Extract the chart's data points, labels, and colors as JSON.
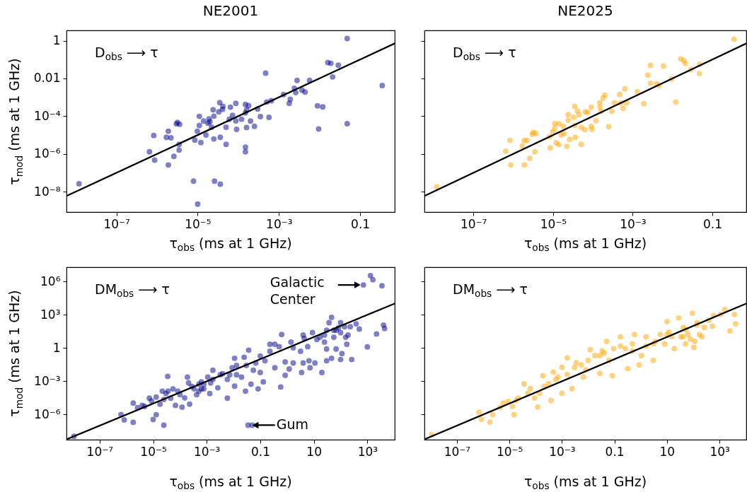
{
  "chart_data": [
    {
      "type": "scatter",
      "title": "NE2001",
      "xlabel": "τ$_{obs}$ (ms at 1 GHz)",
      "ylabel": "τ$_{mod}$ (ms at 1 GHz)",
      "log": "xy",
      "xlim": [
        5.9e-09,
        0.71
      ],
      "ylim": [
        8.3e-10,
        3.5
      ],
      "xticks": [
        {
          "value": 1e-07,
          "label": "10⁻⁷"
        },
        {
          "value": 1e-05,
          "label": "10⁻⁵"
        },
        {
          "value": 0.001,
          "label": "10⁻³"
        },
        {
          "value": 0.1,
          "label": "0.1"
        }
      ],
      "yticks": [
        {
          "value": 1e-08,
          "label": "10⁻⁸"
        },
        {
          "value": 1e-06,
          "label": "10⁻⁶"
        },
        {
          "value": 0.0001,
          "label": "10⁻⁴"
        },
        {
          "value": 0.01,
          "label": "0.01"
        },
        {
          "value": 1,
          "label": "1"
        }
      ],
      "annotations": [
        "D$_{obs}$ ⟶ τ"
      ],
      "series": [
        {
          "color": "#00008b",
          "marker": "circle",
          "x": [
            1.2e-08,
            0.048,
            0.016,
            0.019,
            0.029,
            0.00047,
            0.021,
            0.35,
            0.0028,
            0.0057,
            0.0024,
            0.0037,
            0.0044,
            0.0026,
            0.0013,
            0.0019,
            0.0018,
            0.00065,
            0.0005,
            0.0089,
            0.012,
            0.0095,
            0.048,
            0.00015,
            0.00018,
            0.00016,
            0.0003,
            0.00015,
            8.7e-05,
            6.4e-05,
            3.5e-05,
            4.2e-05,
            4.1e-05,
            2.4e-05,
            3.3e-05,
            2.5e-05,
            1.1e-05,
            7.2e-05,
            6e-05,
            8.7e-05,
            0.00012,
            0.0002,
            0.00035,
            0.00057,
            1.9e-05,
            2e-05,
            1.4e-05,
            1.8e-05,
            1.1e-05,
            2.2e-05,
            5e-05,
            9.1e-05,
            0.00016,
            0.00025,
            3.2e-06,
            3.6e-06,
            3e-06,
            1.9e-06,
            1.7e-06,
            2.2e-06,
            8.3e-07,
            9.8e-06,
            1.6e-05,
            8.5e-06,
            1.2e-05,
            2.5e-05,
            3.6e-05,
            5e-05,
            3.5e-06,
            3.5e-06,
            6.5e-07,
            8.7e-07,
            2.6e-06,
            1.9e-06,
            0.00015,
            0.00015,
            7.9e-06,
            2.6e-05,
            3.6e-05,
            1e-05
          ],
          "values": [
            2.6e-08,
            1.3,
            0.069,
            0.063,
            0.05,
            0.019,
            0.012,
            0.0042,
            0.0078,
            0.0078,
            0.003,
            0.0024,
            0.0019,
            0.0018,
            0.0014,
            0.00078,
            0.00048,
            0.00066,
            0.00056,
            0.00035,
            0.00031,
            2.1e-05,
            4e-05,
            0.00042,
            0.00036,
            0.00022,
            0.00024,
            0.00015,
            0.00048,
            0.0003,
            0.00052,
            0.00033,
            0.00023,
            0.00022,
            0.00017,
            0.0001,
            9.8e-05,
            0.00011,
            6.9e-05,
            5.6e-05,
            6.9e-05,
            5.5e-05,
            9.5e-05,
            8.7e-05,
            7.2e-05,
            5.1e-05,
            5.5e-05,
            4.2e-05,
            3.2e-05,
            2.6e-05,
            2.6e-05,
            2e-05,
            2.5e-05,
            2.9e-05,
            4.7e-05,
            3.7e-05,
            3.9e-05,
            1.6e-05,
            7.6e-06,
            7.1e-06,
            9.5e-06,
            1.6e-05,
            1e-05,
            5.4e-06,
            4e-06,
            6.2e-06,
            7.6e-06,
            3.2e-06,
            3.2e-06,
            1.6e-06,
            1.3e-06,
            4.7e-07,
            7.4e-07,
            2.6e-07,
            2.3e-06,
            1.3e-06,
            3.6e-08,
            3.6e-08,
            2.5e-08,
            2.2e-09
          ]
        },
        {
          "type": "line",
          "color": "#000000",
          "x": [
            6e-09,
            0.7
          ],
          "values": [
            6e-09,
            0.7
          ]
        }
      ]
    },
    {
      "type": "scatter",
      "title": "NE2025",
      "xlabel": "τ$_{obs}$ (ms at 1 GHz)",
      "log": "xy",
      "tick_labels": "x",
      "xlim": [
        5.9e-09,
        0.71
      ],
      "ylim": [
        8.3e-10,
        3.5
      ],
      "xticks": [
        {
          "value": 1e-07,
          "label": "10⁻⁷"
        },
        {
          "value": 1e-05,
          "label": "10⁻⁵"
        },
        {
          "value": 0.001,
          "label": "10⁻³"
        },
        {
          "value": 0.1,
          "label": "0.1"
        }
      ],
      "yticks": [
        {
          "value": 1e-08,
          "label": null
        },
        {
          "value": 1e-06,
          "label": null
        },
        {
          "value": 0.0001,
          "label": null
        },
        {
          "value": 0.01,
          "label": null
        },
        {
          "value": 1,
          "label": null
        }
      ],
      "annotations": [
        "D$_{obs}$ ⟶ τ"
      ],
      "series": [
        {
          "color": "#ffa500",
          "marker": "circle",
          "x": [
            1.2e-08,
            0.35,
            0.016,
            0.019,
            0.021,
            0.048,
            0.029,
            0.047,
            0.0028,
            0.0059,
            0.0024,
            0.0028,
            0.004,
            0.0046,
            0.0093,
            0.012,
            0.0013,
            0.00063,
            0.00047,
            0.00035,
            0.0005,
            0.00069,
            0.00057,
            0.0019,
            0.0002,
            0.00018,
            0.00015,
            0.00015,
            0.00016,
            0.0003,
            0.00025,
            0.00012,
            9.1e-05,
            6.5e-05,
            7.4e-05,
            4.5e-05,
            3.5e-05,
            4.1e-05,
            2.4e-05,
            3.3e-05,
            2.4e-05,
            1.1e-05,
            1.4e-05,
            1.1e-05,
            1.8e-05,
            1.9e-05,
            1.6e-05,
            9.8e-06,
            8.1e-06,
            3.5e-05,
            5.1e-05,
            6.3e-05,
            9.1e-05,
            9.5e-05,
            3.6e-05,
            2.6e-05,
            5.1e-05,
            1.2e-05,
            1.4e-05,
            8.5e-06,
            2.2e-05,
            3.2e-06,
            3.7e-06,
            3e-06,
            1.9e-06,
            2.2e-06,
            1.7e-06,
            8.3e-07,
            6.5e-07,
            3.5e-06,
            2.6e-06,
            8.7e-07,
            1.9e-06
          ],
          "values": [
            1.8e-08,
            1.2,
            0.11,
            0.09,
            0.062,
            0.056,
            0.03,
            0.018,
            0.049,
            0.045,
            0.015,
            0.0055,
            0.0052,
            0.0042,
            0.0093,
            0.00056,
            0.002,
            0.0028,
            0.0014,
            0.00051,
            0.00051,
            0.00051,
            0.00026,
            0.00046,
            0.0013,
            0.00091,
            0.00051,
            0.0003,
            0.00018,
            0.00018,
            2.8e-05,
            5.8e-05,
            0.0003,
            0.00017,
            0.00016,
            0.00012,
            0.00033,
            0.00019,
            0.00012,
            8.8e-05,
            6e-05,
            4e-05,
            4e-05,
            2.2e-05,
            2.9e-05,
            1.2e-05,
            1e-05,
            1.5e-05,
            8.3e-06,
            3.2e-05,
            2.5e-05,
            1.9e-05,
            2.9e-05,
            2e-05,
            7.6e-06,
            5.9e-06,
            3.2e-06,
            3.9e-06,
            3.1e-06,
            2.1e-06,
            2.5e-06,
            1.4e-05,
            1.2e-05,
            1.1e-05,
            5.2e-06,
            5.2e-06,
            2.7e-06,
            5.2e-06,
            1.4e-06,
            1.3e-06,
            5.8e-07,
            2.6e-07,
            2.6e-07
          ]
        },
        {
          "type": "line",
          "color": "#000000",
          "x": [
            6e-09,
            0.7
          ],
          "values": [
            6e-09,
            0.7
          ]
        }
      ]
    },
    {
      "type": "scatter",
      "xlabel": "τ$_{obs}$ (ms at 1 GHz)",
      "ylabel": "τ$_{mod}$ (ms at 1 GHz)",
      "log": "xy",
      "xlim": [
        5.8e-09,
        10500
      ],
      "ylim": [
        5.4e-09,
        20000000.0
      ],
      "xticks": [
        {
          "value": 1e-07,
          "label": "10⁻⁷"
        },
        {
          "value": 1e-05,
          "label": "10⁻⁵"
        },
        {
          "value": 0.001,
          "label": "10⁻³"
        },
        {
          "value": 0.1,
          "label": "0.1"
        },
        {
          "value": 10,
          "label": "10"
        },
        {
          "value": 1000,
          "label": "10³"
        }
      ],
      "yticks": [
        {
          "value": 1e-06,
          "label": "10⁻⁶"
        },
        {
          "value": 0.001,
          "label": "10⁻³"
        },
        {
          "value": 1,
          "label": "1"
        },
        {
          "value": 1000,
          "label": "10³"
        },
        {
          "value": 1000000,
          "label": "10⁶"
        }
      ],
      "annotations": [
        "DM$_{obs}$ ⟶ τ",
        {
          "text": "Galactic\nCenter",
          "x": 710,
          "y": 500000.0
        },
        {
          "text": "Gum",
          "x": 0.035,
          "y": 1.1e-07
        }
      ],
      "series": [
        {
          "color": "#00008b",
          "marker": "circle",
          "x": [
            1.1e-08,
            710,
            1300,
            1600,
            3500,
            4000,
            4400,
            2200,
            1000,
            0.035,
            0.05,
            2.5e-05,
            3.5e-05,
            6.3e-07,
            8.3e-07,
            1.8e-06,
            1e-05,
            1.3e-05,
            1.8e-06,
            2.6e-06,
            4.8e-06,
            8.7e-06,
            1.8e-05,
            2.5e-05,
            4.5e-05,
            6.8e-05,
            0.00012,
            0.00023,
            0.00015,
            0.0001,
            3.6e-05,
            2.2e-05,
            0.00019,
            0.00021,
            0.00034,
            0.00051,
            0.00078,
            0.0013,
            0.00042,
            0.0059,
            0.0026,
            0.0014,
            0.00063,
            0.0017,
            0.0032,
            0.0072,
            0.011,
            0.011,
            0.0089,
            0.02,
            0.025,
            0.037,
            0.028,
            0.045,
            0.083,
            0.055,
            0.1,
            0.13,
            0.068,
            0.15,
            0.23,
            0.35,
            0.58,
            0.63,
            0.35,
            0.85,
            1.2,
            0.85,
            1.7,
            3.2,
            1.7,
            4,
            3.5,
            4.4,
            5.9,
            6.6,
            7.2,
            11,
            20,
            13,
            25,
            46,
            37,
            30,
            25,
            30,
            30,
            46,
            56,
            68,
            83,
            100,
            100,
            112,
            155,
            170,
            230,
            190,
            260,
            380,
            500,
            140,
            68,
            0.00051,
            0.0011,
            0.0039,
            0.013,
            0.03,
            0.1,
            0.23,
            0.51,
            1.4,
            4,
            8.9,
            17,
            56,
            100,
            7.2e-06,
            3.9e-06,
            1.3e-05,
            3e-05,
            5.5e-05,
            8.3e-05,
            0.00028,
            0.00063,
            0.00078,
            0.0017,
            0.0059,
            0.013
          ],
          "values": [
            1.1e-08,
            500000.0,
            3500000.0,
            1500000.0,
            420000.0,
            120,
            58,
            19,
            1.3,
            1.1e-07,
            1.1e-07,
            1.1e-07,
            0.0028,
            1e-06,
            3.3e-07,
            2e-07,
            3.6e-07,
            9.8e-07,
            1.1e-05,
            4.2e-06,
            5.4e-06,
            1.7e-05,
            8.7e-06,
            2.3e-05,
            3e-05,
            6.8e-06,
            4.7e-06,
            8.7e-06,
            3.2e-05,
            6.2e-05,
            0.00013,
            0.00013,
            0.0024,
            0.00071,
            0.00021,
            0.00013,
            0.00021,
            7.8e-05,
            6.2e-05,
            3e-05,
            0.00026,
            0.00071,
            0.00089,
            0.01,
            0.0039,
            0.0039,
            0.12,
            0.00037,
            0.017,
            0.0024,
            0.15,
            0.65,
            0.00013,
            0.00055,
            0.00021,
            0.01,
            0.0063,
            0.00089,
            0.045,
            0.072,
            0.51,
            2.2,
            0.00031,
            17,
            0.017,
            0.056,
            0.013,
            0.0035,
            0.045,
            0.51,
            1.07,
            0.045,
            0.0063,
            7.4,
            1.35,
            0.072,
            0.017,
            0.045,
            0.0063,
            5.9,
            15,
            600,
            195,
            41,
            3.5,
            0.83,
            0.072,
            0.12,
            9.5,
            0.83,
            68,
            195,
            0.093,
            0.32,
            9.5,
            2.2,
            85,
            15,
            0.093,
            155,
            52,
            85,
            41,
            0.00055,
            0.0024,
            0.0049,
            0.027,
            0.027,
            0.19,
            2.2,
            1.35,
            3.5,
            15,
            25,
            9.5,
            41,
            25,
            3e-05,
            6.8e-06,
            3.8e-05,
            7.8e-05,
            0.00021,
            0.00013,
            0.00034,
            0.00021,
            0.00055,
            0.0015,
            0.0015,
            0.0039
          ]
        },
        {
          "type": "line",
          "color": "#000000",
          "x": [
            6e-09,
            10000
          ],
          "values": [
            6e-09,
            10000
          ]
        }
      ]
    },
    {
      "type": "scatter",
      "xlabel": "τ$_{obs}$ (ms at 1 GHz)",
      "log": "xy",
      "tick_labels": "x",
      "xlim": [
        5.8e-09,
        10500
      ],
      "ylim": [
        5.4e-09,
        20000000.0
      ],
      "xticks": [
        {
          "value": 1e-07,
          "label": "10⁻⁷"
        },
        {
          "value": 1e-05,
          "label": "10⁻⁵"
        },
        {
          "value": 0.001,
          "label": "10⁻³"
        },
        {
          "value": 0.1,
          "label": "0.1"
        },
        {
          "value": 10,
          "label": "10"
        },
        {
          "value": 1000,
          "label": "10³"
        }
      ],
      "yticks": [
        {
          "value": 1e-06,
          "label": null
        },
        {
          "value": 0.001,
          "label": null
        },
        {
          "value": 1,
          "label": null
        },
        {
          "value": 1000,
          "label": null
        },
        {
          "value": 1000000,
          "label": null
        }
      ],
      "annotations": [
        "DM$_{obs}$ ⟶ τ"
      ],
      "series": [
        {
          "color": "#ffa500",
          "marker": "circle",
          "x": [
            1.1e-08,
            6.9e-07,
            8.5e-07,
            1.8e-06,
            2.3e-06,
            4.4e-06,
            5.9e-06,
            8.9e-06,
            1.5e-05,
            1.3e-05,
            2.2e-05,
            3.6e-05,
            6.2e-05,
            9.1e-05,
            0.00012,
            0.00014,
            0.00021,
            0.00019,
            0.00038,
            0.00058,
            0.001,
            0.0024,
            0.0016,
            0.0035,
            0.0066,
            0.0081,
            0.012,
            0.018,
            0.028,
            0.034,
            0.05,
            0.083,
            0.093,
            0.062,
            0.17,
            0.32,
            0.26,
            0.48,
            0.58,
            0.87,
            1.07,
            1.6,
            3,
            3.6,
            5.5,
            10,
            8.1,
            12,
            19,
            28,
            34,
            51,
            51,
            78,
            93,
            105,
            140,
            174,
            214,
            263,
            390,
            540,
            1100,
            1600,
            2500,
            3700,
            4100,
            0.00047,
            0.001,
            0.003,
            0.01,
            0.028,
            0.17,
            1.6,
            10,
            42,
            140,
            590,
            1.8e-05,
            5e-05,
            0.00031,
            0.00071,
            0.0016,
            0.0054,
            0.041,
            0.48,
            3,
            15,
            42,
            63,
            115
          ],
          "values": [
            1.5e-08,
            1.6e-06,
            3.7e-07,
            2.1e-07,
            1e-06,
            4.4e-06,
            1.1e-05,
            1.5e-05,
            1e-06,
            5.5e-06,
            3.1e-05,
            0.00059,
            0.00022,
            3.1e-05,
            4.8e-06,
            8.1e-05,
            0.00035,
            0.0032,
            1.9e-05,
            0.0015,
            8.1e-05,
            0.00022,
            0.13,
            0.048,
            0.0025,
            0.011,
            0.71,
            0.21,
            0.0052,
            0.55,
            4,
            0.0032,
            0.91,
            0.078,
            10.5,
            0.014,
            0.91,
            2.4,
            17,
            0.03,
            0.21,
            1.5,
            0.078,
            4,
            17,
            250,
            2.4,
            28,
            0.91,
            520,
            10.5,
            46,
            2.4,
            6.5,
            1400,
            1.15,
            123,
            17,
            10.5,
            74,
            320,
            95,
            1100,
            3000,
            35,
            1100,
            155,
            0.0068,
            0.018,
            0.018,
            0.078,
            0.21,
            1.5,
            10.5,
            17,
            74,
            200,
            870,
            1.9e-05,
            8.1e-05,
            0.00059,
            0.0025,
            0.0042,
            0.03,
            0.34,
            0.55,
            2.4,
            10.5,
            10.5,
            17,
            4
          ]
        },
        {
          "type": "line",
          "color": "#000000",
          "x": [
            6e-09,
            10000
          ],
          "values": [
            6e-09,
            10000
          ]
        }
      ]
    }
  ]
}
